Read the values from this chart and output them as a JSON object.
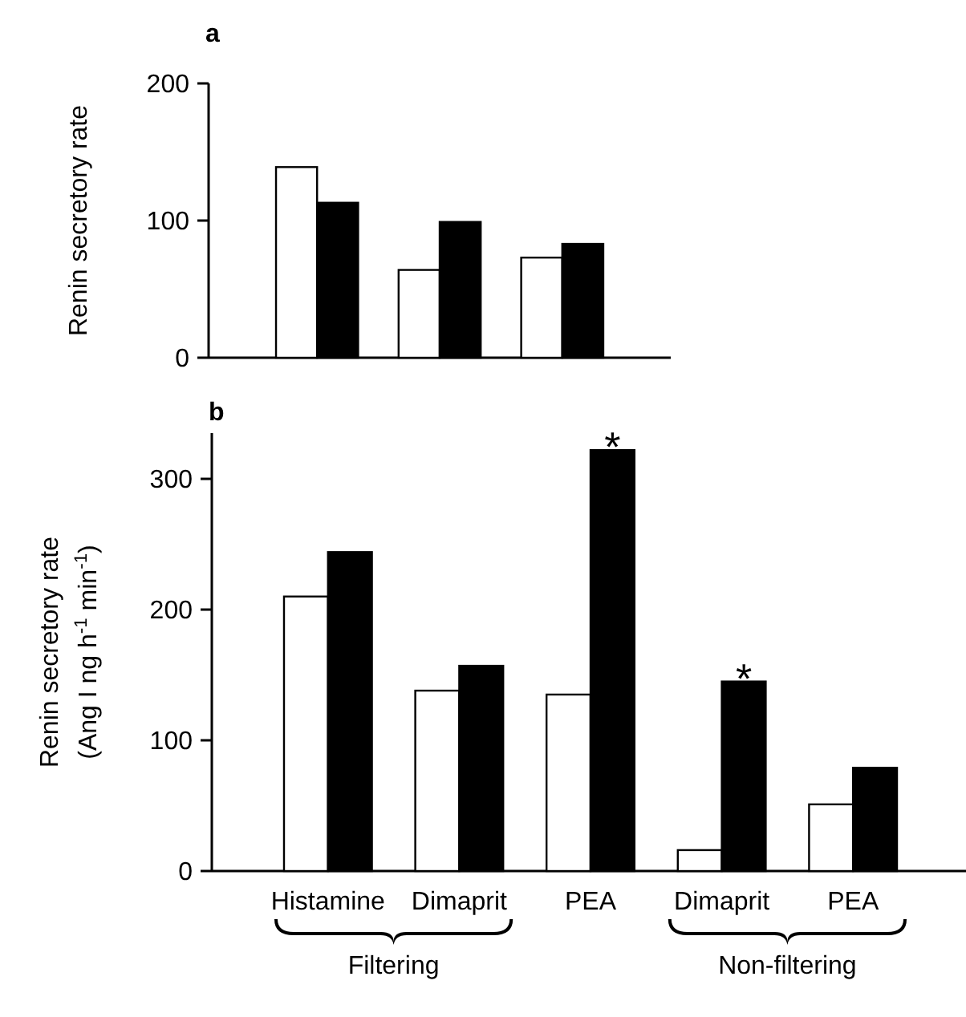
{
  "chart_data": [
    {
      "type": "bar",
      "title": "a",
      "ylabel": "Renin secretory rate",
      "categories": [
        null,
        null,
        null
      ],
      "series": [
        {
          "color": "#ffffff",
          "values": [
            139,
            64,
            73
          ]
        },
        {
          "color": "#000000",
          "values": [
            113,
            99,
            83
          ]
        }
      ],
      "ylim": [
        0,
        200
      ],
      "yticks": [
        0,
        100,
        200
      ],
      "tick_labels": "y",
      "grid": false
    },
    {
      "type": "bar",
      "title": "b",
      "ylabel": "Renin secretory rate\n(Ang I ng h$^{-1}$ min$^{-1}$)",
      "categories": [
        "Histamine",
        "Dimaprit",
        "PEA",
        "Dimaprit",
        "PEA"
      ],
      "series": [
        {
          "color": "#ffffff",
          "values": [
            210,
            138,
            135,
            16,
            51
          ]
        },
        {
          "color": "#000000",
          "values": [
            244,
            157,
            322,
            145,
            79
          ]
        }
      ],
      "ylim": [
        0,
        335
      ],
      "yticks": [
        0,
        100,
        200,
        300
      ],
      "grid": false,
      "annotations": [
        {
          "text": "*",
          "x": "PEA",
          "y": 322
        },
        {
          "text": "*",
          "y": 145
        },
        "Filtering",
        "Non-filtering"
      ]
    }
  ]
}
